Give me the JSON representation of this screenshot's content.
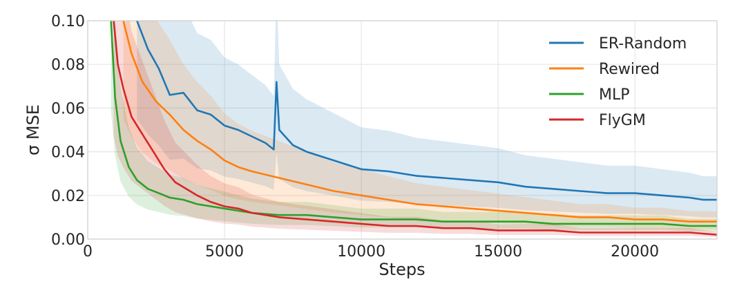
{
  "chart_data": {
    "type": "line",
    "title": "",
    "xlabel": "Steps",
    "ylabel": "σ MSE",
    "xlim": [
      0,
      23000
    ],
    "ylim": [
      0.0,
      0.1
    ],
    "xticks": [
      0,
      5000,
      10000,
      15000,
      20000
    ],
    "xtick_labels": [
      "0",
      "5000",
      "10000",
      "15000",
      "20000"
    ],
    "yticks": [
      0.0,
      0.02,
      0.04,
      0.06,
      0.08,
      0.1
    ],
    "ytick_labels": [
      "0.00",
      "0.02",
      "0.04",
      "0.06",
      "0.08",
      "0.10"
    ],
    "grid": true,
    "legend_position": "top-right",
    "shaded_band": true,
    "series": [
      {
        "name": "ER-Random",
        "color": "#1f77b4",
        "x": [
          1800,
          2200,
          2600,
          3000,
          3500,
          4000,
          4500,
          5000,
          5500,
          6000,
          6500,
          6800,
          6900,
          7000,
          7500,
          8000,
          9000,
          10000,
          11000,
          12000,
          13000,
          14000,
          15000,
          16000,
          17000,
          18000,
          19000,
          20000,
          21000,
          22000,
          22500,
          23000
        ],
        "y": [
          0.1,
          0.087,
          0.078,
          0.066,
          0.067,
          0.059,
          0.057,
          0.052,
          0.05,
          0.047,
          0.044,
          0.041,
          0.072,
          0.05,
          0.043,
          0.04,
          0.036,
          0.032,
          0.031,
          0.029,
          0.028,
          0.027,
          0.026,
          0.024,
          0.023,
          0.022,
          0.021,
          0.021,
          0.02,
          0.019,
          0.018,
          0.018
        ]
      },
      {
        "name": "Rewired",
        "color": "#ff7f0e",
        "x": [
          1300,
          1600,
          2000,
          2500,
          3000,
          3500,
          4000,
          4500,
          5000,
          5500,
          6000,
          7000,
          8000,
          9000,
          10000,
          11000,
          12000,
          13000,
          14000,
          15000,
          16000,
          17000,
          18000,
          19000,
          20000,
          21000,
          22000,
          23000
        ],
        "y": [
          0.1,
          0.085,
          0.072,
          0.063,
          0.057,
          0.05,
          0.045,
          0.041,
          0.036,
          0.033,
          0.031,
          0.028,
          0.025,
          0.022,
          0.02,
          0.018,
          0.016,
          0.015,
          0.014,
          0.013,
          0.012,
          0.011,
          0.01,
          0.01,
          0.009,
          0.009,
          0.008,
          0.008
        ]
      },
      {
        "name": "MLP",
        "color": "#2ca02c",
        "x": [
          850,
          1000,
          1200,
          1500,
          1800,
          2200,
          2600,
          3000,
          3500,
          4000,
          4500,
          5000,
          6000,
          7000,
          8000,
          9000,
          10000,
          11000,
          12000,
          13000,
          14000,
          15000,
          16000,
          17000,
          18000,
          19000,
          20000,
          21000,
          22000,
          23000
        ],
        "y": [
          0.1,
          0.065,
          0.045,
          0.033,
          0.027,
          0.023,
          0.021,
          0.019,
          0.018,
          0.016,
          0.015,
          0.014,
          0.012,
          0.011,
          0.011,
          0.01,
          0.009,
          0.009,
          0.009,
          0.008,
          0.008,
          0.008,
          0.008,
          0.007,
          0.007,
          0.007,
          0.007,
          0.007,
          0.006,
          0.006
        ]
      },
      {
        "name": "FlyGM",
        "color": "#d62728",
        "x": [
          950,
          1100,
          1300,
          1600,
          2000,
          2400,
          2800,
          3200,
          3600,
          4000,
          4500,
          5000,
          5500,
          6000,
          6500,
          7000,
          8000,
          9000,
          10000,
          11000,
          12000,
          13000,
          14000,
          15000,
          16000,
          17000,
          18000,
          19000,
          20000,
          21000,
          22000,
          23000
        ],
        "y": [
          0.1,
          0.08,
          0.069,
          0.056,
          0.048,
          0.04,
          0.032,
          0.026,
          0.023,
          0.02,
          0.017,
          0.015,
          0.014,
          0.012,
          0.011,
          0.01,
          0.009,
          0.008,
          0.007,
          0.006,
          0.006,
          0.005,
          0.005,
          0.004,
          0.004,
          0.004,
          0.003,
          0.003,
          0.003,
          0.003,
          0.003,
          0.002
        ]
      }
    ]
  }
}
